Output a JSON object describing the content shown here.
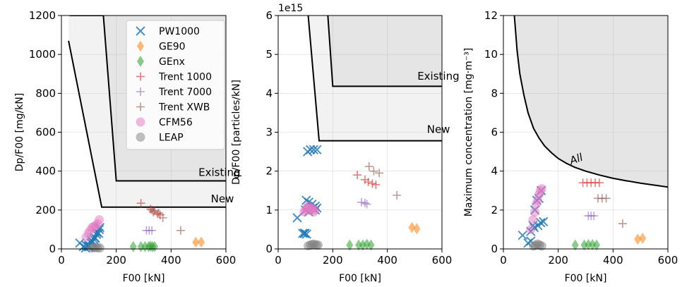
{
  "figure": {
    "marker_colors": {
      "PW1000": "#1f77b4",
      "GE90": "#ff7f0e",
      "GEnx": "#2ca02c",
      "Trent 1000": "#d62728",
      "Trent 7000": "#9467bd",
      "Trent XWB": "#8c564b",
      "CFM56": "#e377c2",
      "LEAP": "#7f7f7f"
    },
    "region_colors": {
      "light": "#f2f2f2",
      "dark": "#e5e5e5",
      "boundary": "#000000"
    }
  },
  "chart_data": [
    {
      "type": "scatter",
      "xlabel": "F00 [kN]",
      "ylabel": "Dp/F00 [mg/kN]",
      "xlim": [
        0,
        600
      ],
      "ylim": [
        0,
        1200
      ],
      "xticks": [
        0,
        200,
        400,
        600
      ],
      "yticks": [
        0,
        200,
        400,
        600,
        800,
        1000,
        1200
      ],
      "grid": true,
      "legend": {
        "placement": "top-center",
        "entries": [
          {
            "label": "PW1000",
            "marker": "x"
          },
          {
            "label": "GE90",
            "marker": "diamond"
          },
          {
            "label": "GEnx",
            "marker": "diamond"
          },
          {
            "label": "Trent 1000",
            "marker": "plus"
          },
          {
            "label": "Trent 7000",
            "marker": "plus"
          },
          {
            "label": "Trent XWB",
            "marker": "plus"
          },
          {
            "label": "CFM56",
            "marker": "circle"
          },
          {
            "label": "LEAP",
            "marker": "circle"
          }
        ]
      },
      "lines": [
        {
          "label": "Existing",
          "x": [
            30,
            153,
            200,
            600
          ],
          "y": [
            1200,
            1200,
            350,
            350
          ]
        },
        {
          "label": "New",
          "x": [
            26,
            147,
            600
          ],
          "y": [
            1070,
            215,
            215
          ]
        }
      ],
      "annotations": [
        {
          "text": "Existing",
          "x": 500,
          "y": 375
        },
        {
          "text": "New",
          "x": 545,
          "y": 240
        }
      ],
      "series": [
        {
          "name": "PW1000",
          "marker": "x",
          "x": [
            67,
            80,
            90,
            100,
            110,
            120,
            130,
            140,
            88,
            98,
            108,
            118,
            128,
            138,
            100,
            112,
            124,
            136
          ],
          "y": [
            30,
            12,
            18,
            10,
            45,
            60,
            85,
            110,
            5,
            15,
            30,
            50,
            75,
            100,
            20,
            35,
            55,
            80
          ]
        },
        {
          "name": "GE90",
          "marker": "diamond",
          "x": [
            490,
            510
          ],
          "y": [
            35,
            35
          ]
        },
        {
          "name": "GEnx",
          "marker": "diamond",
          "x": [
            262,
            290,
            305,
            318,
            325,
            332,
            340
          ],
          "y": [
            12,
            12,
            12,
            12,
            14,
            12,
            12
          ]
        },
        {
          "name": "Trent 1000",
          "marker": "plus",
          "x": [
            290,
            325,
            335,
            350,
            360
          ],
          "y": [
            235,
            205,
            190,
            180,
            175
          ]
        },
        {
          "name": "Trent 7000",
          "marker": "plus",
          "x": [
            310,
            320,
            330
          ],
          "y": [
            95,
            95,
            95
          ]
        },
        {
          "name": "Trent XWB",
          "marker": "plus",
          "x": [
            330,
            340,
            355,
            370,
            435
          ],
          "y": [
            200,
            195,
            185,
            160,
            95
          ]
        },
        {
          "name": "CFM56",
          "marker": "circle",
          "x": [
            90,
            98,
            105,
            112,
            118,
            125,
            132,
            138
          ],
          "y": [
            60,
            80,
            95,
            110,
            115,
            120,
            130,
            150
          ]
        },
        {
          "name": "LEAP",
          "marker": "circle",
          "x": [
            110,
            118,
            125,
            132,
            140
          ],
          "y": [
            5,
            6,
            8,
            6,
            5
          ]
        }
      ]
    },
    {
      "type": "scatter",
      "xlabel": "F00 [kN]",
      "ylabel": "Dp/F00 [particles/kN]",
      "offset_text": "1e15",
      "xlim": [
        0,
        600
      ],
      "ylim": [
        0,
        6
      ],
      "xticks": [
        0,
        200,
        400,
        600
      ],
      "yticks": [
        0,
        1,
        2,
        3,
        4,
        5,
        6
      ],
      "grid": true,
      "lines": [
        {
          "label": "Existing",
          "x": [
            182,
            200,
            600
          ],
          "y": [
            6,
            4.18,
            4.18
          ]
        },
        {
          "label": "New",
          "x": [
            110,
            150,
            600
          ],
          "y": [
            6,
            2.78,
            2.78
          ]
        }
      ],
      "annotations": [
        {
          "text": "Existing",
          "x": 510,
          "y": 4.35
        },
        {
          "text": "New",
          "x": 545,
          "y": 2.98
        }
      ],
      "series": [
        {
          "name": "PW1000",
          "marker": "x",
          "x": [
            70,
            90,
            98,
            103,
            108,
            112,
            118,
            124,
            130,
            136,
            142,
            100,
            112,
            126,
            136,
            142,
            96,
            104
          ],
          "y": [
            0.8,
            0.4,
            0.4,
            1.25,
            2.5,
            1.2,
            2.55,
            1.15,
            2.55,
            1.1,
            2.55,
            1.0,
            0.95,
            1.05,
            1.0,
            1.05,
            0.4,
            0.38
          ]
        },
        {
          "name": "GE90",
          "marker": "diamond",
          "x": [
            490,
            508
          ],
          "y": [
            0.55,
            0.52
          ]
        },
        {
          "name": "GEnx",
          "marker": "diamond",
          "x": [
            262,
            295,
            310,
            325,
            340
          ],
          "y": [
            0.1,
            0.1,
            0.1,
            0.12,
            0.1
          ]
        },
        {
          "name": "Trent 1000",
          "marker": "plus",
          "x": [
            290,
            318,
            330,
            345,
            358
          ],
          "y": [
            1.9,
            1.78,
            1.72,
            1.68,
            1.65
          ]
        },
        {
          "name": "Trent 7000",
          "marker": "plus",
          "x": [
            305,
            318,
            325
          ],
          "y": [
            1.2,
            1.18,
            1.15
          ]
        },
        {
          "name": "Trent XWB",
          "marker": "plus",
          "x": [
            333,
            350,
            370,
            435
          ],
          "y": [
            2.12,
            2.0,
            1.95,
            1.38
          ]
        },
        {
          "name": "CFM56",
          "marker": "circle",
          "x": [
            95,
            100,
            105,
            110,
            115,
            120,
            125,
            130,
            135
          ],
          "y": [
            0.95,
            1.0,
            1.05,
            1.1,
            1.0,
            1.05,
            1.05,
            0.95,
            1.0
          ]
        },
        {
          "name": "LEAP",
          "marker": "circle",
          "x": [
            110,
            118,
            125,
            132,
            140,
            146
          ],
          "y": [
            0.08,
            0.1,
            0.12,
            0.12,
            0.1,
            0.1
          ]
        }
      ]
    },
    {
      "type": "scatter",
      "xlabel": "F00 [kN]",
      "ylabel": "Maximum concentration [mg·m⁻³]",
      "xlim": [
        0,
        600
      ],
      "ylim": [
        0,
        12
      ],
      "xticks": [
        0,
        200,
        400,
        600
      ],
      "yticks": [
        0,
        2,
        4,
        6,
        8,
        10,
        12
      ],
      "grid": true,
      "curves": [
        {
          "label": "All",
          "type": "hyperbola-like",
          "x": [
            40,
            50,
            60,
            75,
            90,
            110,
            130,
            150,
            175,
            200,
            230,
            260,
            300,
            350,
            400,
            450,
            500,
            550,
            600
          ],
          "y": [
            12,
            10.2,
            9.0,
            7.9,
            7.0,
            6.2,
            5.7,
            5.3,
            4.95,
            4.65,
            4.4,
            4.2,
            4.0,
            3.8,
            3.63,
            3.5,
            3.38,
            3.28,
            3.18
          ]
        }
      ],
      "annotations": [
        {
          "text": "All",
          "x": 270,
          "y": 4.45
        }
      ],
      "series": [
        {
          "name": "PW1000",
          "marker": "x",
          "x": [
            70,
            90,
            100,
            108,
            115,
            122,
            130,
            138,
            146,
            100,
            112,
            126,
            136
          ],
          "y": [
            0.7,
            0.3,
            0.9,
            1.2,
            2.0,
            2.5,
            2.6,
            3.0,
            1.4,
            0.4,
            1.1,
            1.2,
            1.35
          ]
        },
        {
          "name": "GE90",
          "marker": "diamond",
          "x": [
            490,
            508
          ],
          "y": [
            0.5,
            0.55
          ]
        },
        {
          "name": "GEnx",
          "marker": "diamond",
          "x": [
            262,
            295,
            310,
            325,
            340
          ],
          "y": [
            0.2,
            0.2,
            0.22,
            0.22,
            0.2
          ]
        },
        {
          "name": "Trent 1000",
          "marker": "plus",
          "x": [
            290,
            305,
            320,
            335,
            350
          ],
          "y": [
            3.4,
            3.4,
            3.4,
            3.4,
            3.4
          ]
        },
        {
          "name": "Trent 7000",
          "marker": "plus",
          "x": [
            310,
            320,
            330
          ],
          "y": [
            1.7,
            1.7,
            1.7
          ]
        },
        {
          "name": "Trent XWB",
          "marker": "plus",
          "x": [
            345,
            360,
            375,
            435
          ],
          "y": [
            2.6,
            2.6,
            2.6,
            1.3
          ]
        },
        {
          "name": "CFM56",
          "marker": "circle",
          "x": [
            100,
            108,
            115,
            120,
            125,
            130,
            135,
            140
          ],
          "y": [
            1.0,
            1.5,
            1.9,
            2.3,
            2.5,
            2.8,
            3.0,
            3.1
          ]
        },
        {
          "name": "LEAP",
          "marker": "circle",
          "x": [
            110,
            118,
            125,
            132,
            140
          ],
          "y": [
            0.15,
            0.2,
            0.25,
            0.2,
            0.15
          ]
        }
      ]
    }
  ]
}
